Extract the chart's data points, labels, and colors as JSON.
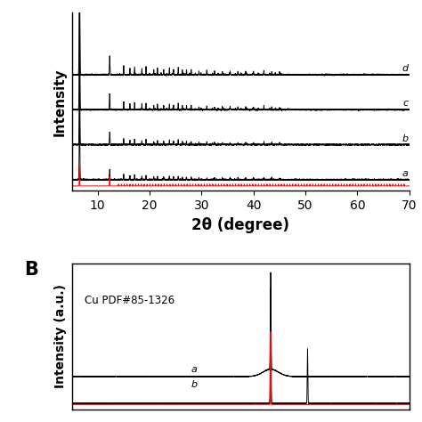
{
  "panel_A": {
    "xlabel": "2θ (degree)",
    "ylabel": "Intensity",
    "xlim": [
      5,
      70
    ],
    "xticks": [
      10,
      20,
      30,
      40,
      50,
      60,
      70
    ],
    "labels": [
      "a",
      "b",
      "c",
      "d"
    ],
    "red_peak1": 6.5,
    "red_peak2": 12.3
  },
  "panel_B": {
    "ylabel": "Intensity (a.u.)",
    "label_text": "Cu PDF#85-1326",
    "panel_label": "B",
    "xlim": [
      5,
      70
    ],
    "cu_peak1": 43.3,
    "cu_peak2": 50.4
  },
  "background_color": "#ffffff",
  "line_color": "#000000",
  "red_color": "#ff0000"
}
